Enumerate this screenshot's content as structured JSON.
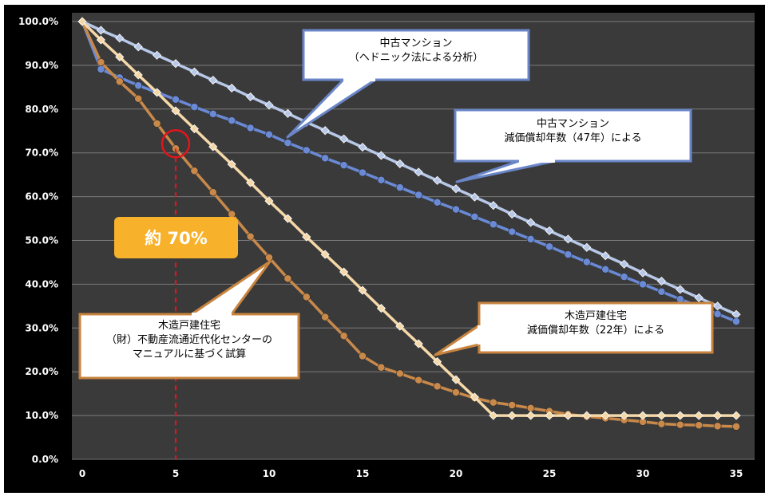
{
  "chart_data": {
    "type": "line",
    "xlim": [
      0,
      35
    ],
    "ylim": [
      0,
      100
    ],
    "x_ticks": [
      "0",
      "5",
      "10",
      "15",
      "20",
      "25",
      "30",
      "35"
    ],
    "y_ticks": [
      "0.0%",
      "10.0%",
      "20.0%",
      "30.0%",
      "40.0%",
      "50.0%",
      "60.0%",
      "70.0%",
      "80.0%",
      "90.0%",
      "100.0%"
    ],
    "grid": "horizontal",
    "x": [
      0,
      1,
      2,
      3,
      4,
      5,
      6,
      7,
      8,
      9,
      10,
      11,
      12,
      13,
      14,
      15,
      16,
      17,
      18,
      19,
      20,
      21,
      22,
      23,
      24,
      25,
      26,
      27,
      28,
      29,
      30,
      31,
      32,
      33,
      34,
      35
    ],
    "series": [
      {
        "color": "#b8c8e8",
        "marker": "diamond",
        "values": [
          100,
          98,
          96.2,
          94.2,
          92.3,
          90.4,
          88.5,
          86.6,
          84.8,
          82.8,
          80.9,
          79,
          77,
          75.1,
          73.2,
          71.3,
          69.4,
          67.5,
          65.6,
          63.7,
          61.8,
          59.9,
          58,
          56,
          54.1,
          52.2,
          50.3,
          48.4,
          46.5,
          44.6,
          42.6,
          40.7,
          38.8,
          36.9,
          35,
          33.1
        ]
      },
      {
        "color": "#6a8ad6",
        "marker": "circle",
        "values": [
          100,
          89.1,
          87.2,
          85.4,
          83.8,
          82.2,
          80.5,
          78.9,
          77.4,
          75.7,
          74.2,
          72.3,
          70.6,
          68.8,
          67.2,
          65.5,
          63.8,
          62.1,
          60.4,
          58.7,
          57.1,
          55.4,
          53.7,
          52,
          50.3,
          48.6,
          46.8,
          45.1,
          43.4,
          41.7,
          40,
          38.3,
          36.6,
          34.9,
          33.2,
          31.5
        ]
      },
      {
        "color": "#c8894a",
        "marker": "circle",
        "values": [
          100,
          90.7,
          86.3,
          82.4,
          76.7,
          71,
          65.9,
          61,
          56,
          50.9,
          46.1,
          41.3,
          37.1,
          32.5,
          28.2,
          23.6,
          21,
          19.6,
          18.1,
          16.7,
          15.3,
          14,
          13,
          12.4,
          11.7,
          11,
          10.3,
          9.8,
          9.4,
          9,
          8.6,
          8.1,
          7.9,
          7.8,
          7.6,
          7.5
        ]
      },
      {
        "color": "#f5d8a8",
        "marker": "diamond",
        "values": [
          100,
          95.8,
          91.9,
          87.8,
          83.8,
          79.6,
          75.5,
          71.4,
          67.4,
          63.2,
          59,
          55,
          50.8,
          46.8,
          42.8,
          38.6,
          34.5,
          30.4,
          26.4,
          22.3,
          18.2,
          14.2,
          10,
          10,
          10,
          10,
          10,
          10,
          10,
          10,
          10,
          10,
          10,
          10,
          10,
          10
        ]
      }
    ],
    "marker_x": 5
  },
  "badge": {
    "text": "約 70%"
  },
  "callouts": {
    "a": {
      "line1": "中古マンション",
      "line2": "（ヘドニック法による分析）"
    },
    "b": {
      "line1": "中古マンション",
      "line2": "減価償却年数（47年）による"
    },
    "c": {
      "line1": "木造戸建住宅",
      "line2": "減価償却年数（22年）による"
    },
    "d": {
      "line1": "木造戸建住宅",
      "line2": "（財）不動産流通近代化センターの",
      "line3": "マニュアルに基づく試算"
    }
  },
  "colors": {
    "plot_bg": "#3a3a3a",
    "frame_bg": "#000000",
    "grid": "#7a7a7a",
    "blue_border": "#6a86c8",
    "orange_border": "#c8843e",
    "marker_red": "#e4141c"
  }
}
